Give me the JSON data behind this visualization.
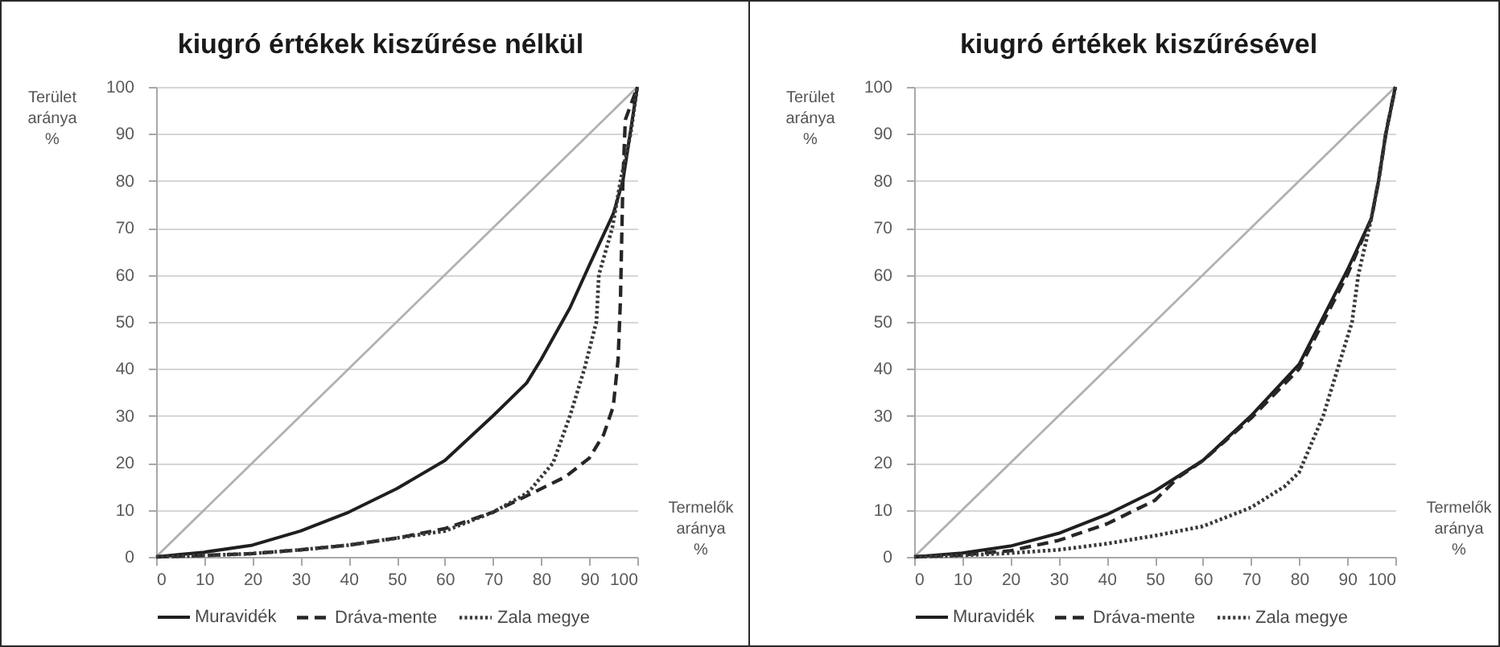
{
  "chart_data": [
    {
      "type": "line",
      "title": "kiugró értékek kiszűrése nélkül",
      "xlabel": "Termelők aránya %",
      "ylabel": "Terület aránya %",
      "xlim": [
        0,
        100
      ],
      "ylim": [
        0,
        100
      ],
      "xticks": [
        0,
        10,
        20,
        30,
        40,
        50,
        60,
        70,
        80,
        90,
        100
      ],
      "yticks": [
        0,
        10,
        20,
        30,
        40,
        50,
        60,
        70,
        80,
        90,
        100
      ],
      "grid": "y",
      "legend": "bottom",
      "series": [
        {
          "color": "#b0b0b0",
          "line_style": "solid",
          "x": [
            0,
            100
          ],
          "values": [
            0,
            100
          ]
        },
        {
          "name": "Muravidék",
          "color": "#1f1f1f",
          "line_style": "solid",
          "x": [
            0,
            5,
            10,
            20,
            30,
            40,
            50,
            60,
            70,
            77,
            80,
            86,
            90,
            95,
            97,
            98.5,
            100
          ],
          "values": [
            0,
            0.5,
            1,
            2.5,
            5.5,
            9.5,
            14.5,
            20.5,
            30,
            37,
            42,
            53,
            62,
            73,
            80,
            90,
            100
          ]
        },
        {
          "name": "Dráva-mente",
          "color": "#262626",
          "line_style": "dashed",
          "x": [
            0,
            10,
            20,
            30,
            40,
            50,
            60,
            70,
            77,
            80,
            85,
            90,
            93,
            95,
            96,
            96.5,
            97,
            97.5,
            100
          ],
          "values": [
            0,
            0.3,
            0.7,
            1.5,
            2.5,
            4,
            6,
            9.5,
            13,
            14.5,
            17,
            21,
            26,
            32,
            42,
            55,
            80,
            93,
            100
          ]
        },
        {
          "name": "Zala megye",
          "color": "#3a3a3a",
          "line_style": "dotted",
          "x": [
            0,
            10,
            20,
            30,
            40,
            50,
            60,
            70,
            77,
            78,
            80,
            82.5,
            86,
            89,
            91.5,
            92,
            94.8,
            96.5,
            98.6,
            100
          ],
          "values": [
            0,
            0.3,
            0.7,
            1.5,
            2.5,
            4,
            5.5,
            9.5,
            13.5,
            14.5,
            17,
            20,
            30,
            40,
            50,
            60,
            70,
            80,
            90,
            100
          ]
        }
      ]
    },
    {
      "type": "line",
      "title": "kiugró értékek kiszűrésével",
      "xlabel": "Termelők aránya %",
      "ylabel": "Terület aránya %",
      "xlim": [
        0,
        100
      ],
      "ylim": [
        0,
        100
      ],
      "xticks": [
        0,
        10,
        20,
        30,
        40,
        50,
        60,
        70,
        80,
        90,
        100
      ],
      "yticks": [
        0,
        10,
        20,
        30,
        40,
        50,
        60,
        70,
        80,
        90,
        100
      ],
      "grid": "y",
      "legend": "bottom",
      "series": [
        {
          "color": "#b0b0b0",
          "line_style": "solid",
          "x": [
            0,
            100
          ],
          "values": [
            0,
            100
          ]
        },
        {
          "name": "Muravidék",
          "color": "#1f1f1f",
          "line_style": "solid",
          "x": [
            0,
            10,
            20,
            30,
            40,
            50,
            60,
            70,
            80,
            86,
            90,
            95,
            96.5,
            98,
            100
          ],
          "values": [
            0,
            0.8,
            2.3,
            5,
            9,
            14,
            20.5,
            30,
            41,
            53,
            61,
            72,
            80,
            90,
            100
          ]
        },
        {
          "name": "Dráva-mente",
          "color": "#262626",
          "line_style": "dashed",
          "x": [
            0,
            10,
            20,
            30,
            40,
            50,
            55,
            60,
            70,
            80,
            86,
            90,
            95,
            96.5,
            98,
            100
          ],
          "values": [
            0,
            0.4,
            1.3,
            3.5,
            7,
            12,
            17,
            20.5,
            29.5,
            40,
            52,
            60,
            72,
            80,
            90,
            100
          ]
        },
        {
          "name": "Zala megye",
          "color": "#3a3a3a",
          "line_style": "dotted",
          "x": [
            0,
            10,
            20,
            30,
            40,
            50,
            60,
            70,
            77,
            80,
            85,
            88,
            91,
            92.3,
            95,
            96.5,
            98,
            100
          ],
          "values": [
            0,
            0.3,
            0.8,
            1.5,
            2.8,
            4.5,
            6.5,
            10.5,
            15,
            18,
            30,
            40,
            50,
            60,
            72,
            80,
            90,
            100
          ]
        }
      ]
    }
  ]
}
